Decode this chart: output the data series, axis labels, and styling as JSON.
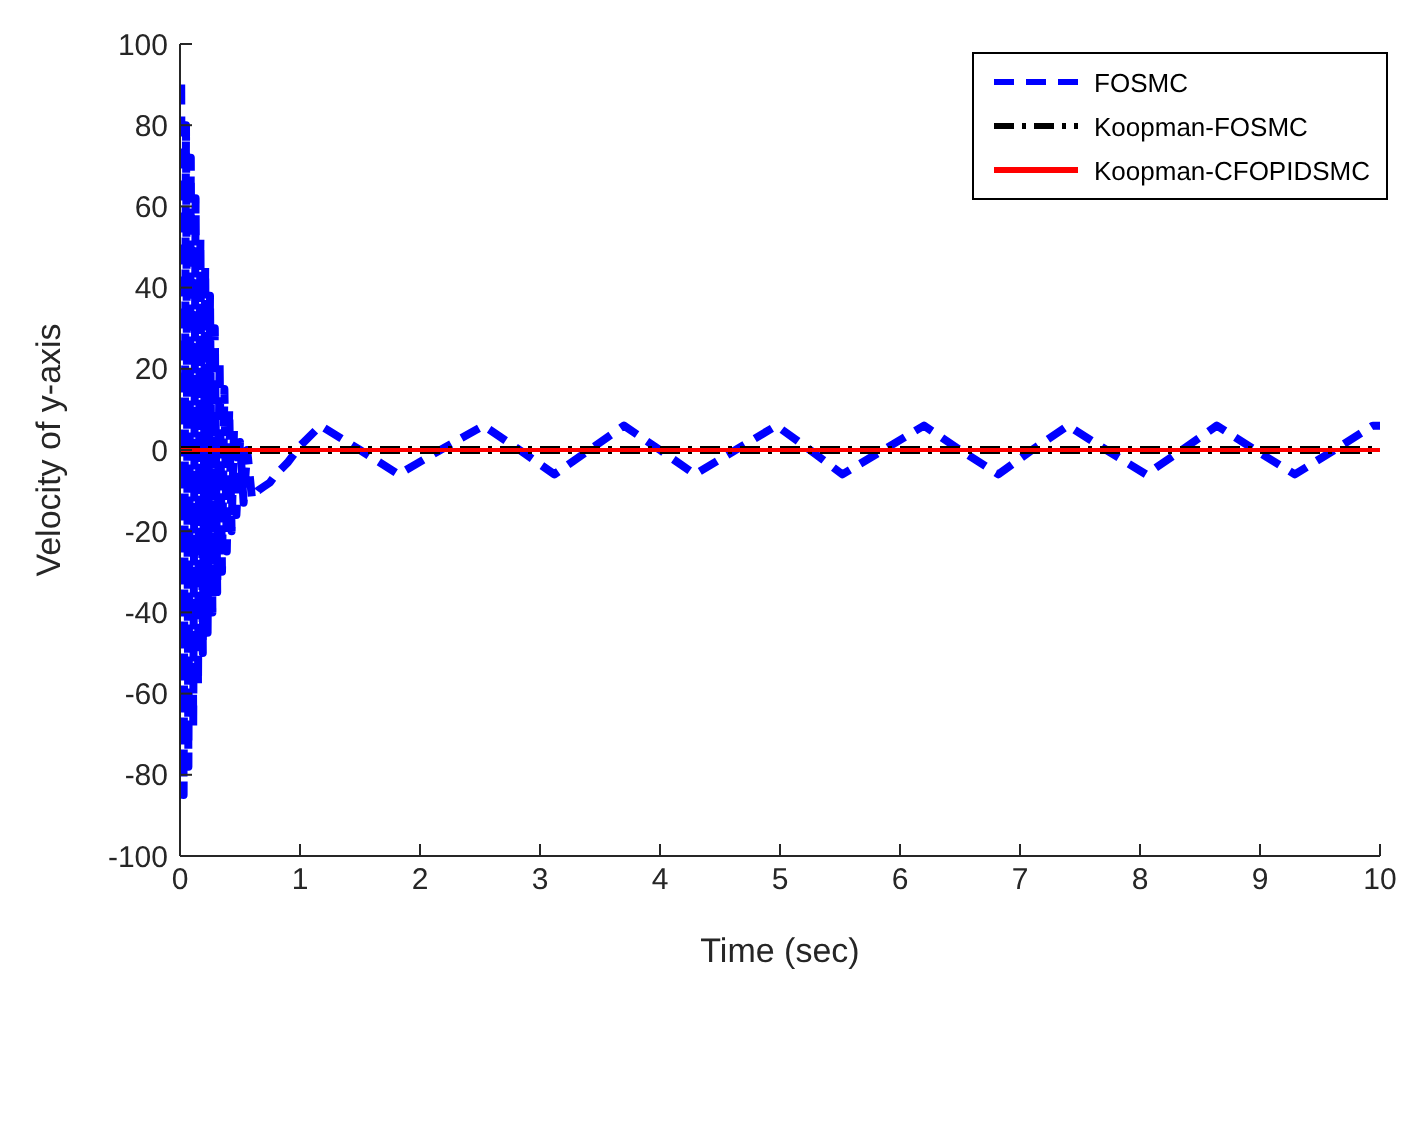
{
  "chart_data": {
    "type": "line",
    "xlabel": "Time (sec)",
    "ylabel": "Velocity of y-axis",
    "xlim": [
      0,
      10
    ],
    "xticks": [
      0,
      1,
      2,
      3,
      4,
      5,
      6,
      7,
      8,
      9,
      10
    ],
    "ylim": [
      -100,
      100
    ],
    "yticks": [
      -100,
      -80,
      -60,
      -40,
      -20,
      0,
      20,
      40,
      60,
      80,
      100
    ],
    "grid": false,
    "legend": "top right",
    "marker": "none",
    "series": [
      {
        "name": "FOSMC",
        "color": "#0000ff",
        "line_style": "dashed",
        "x": [
          0.01,
          0.03,
          0.05,
          0.07,
          0.09,
          0.11,
          0.13,
          0.15,
          0.17,
          0.19,
          0.21,
          0.23,
          0.25,
          0.27,
          0.29,
          0.31,
          0.33,
          0.35,
          0.37,
          0.39,
          0.41,
          0.43,
          0.45,
          0.47,
          0.5,
          0.53,
          0.56,
          0.6,
          0.65,
          0.7,
          0.75,
          0.8,
          0.9,
          1.0,
          1.17,
          1.5,
          1.82,
          2.17,
          2.53,
          2.83,
          3.12,
          3.41,
          3.7,
          4.0,
          4.29,
          4.63,
          4.97,
          5.25,
          5.52,
          5.86,
          6.2,
          6.5,
          6.82,
          7.1,
          7.4,
          7.72,
          8.05,
          8.35,
          8.64,
          8.96,
          9.29,
          9.62,
          9.94,
          10
        ],
        "values": [
          90,
          -85,
          80,
          -78,
          72,
          -68,
          62,
          -58,
          52,
          -50,
          45,
          -45,
          38,
          -40,
          30,
          -35,
          22,
          -30,
          15,
          -25,
          10,
          -20,
          5,
          -16,
          2,
          -13,
          0,
          -12,
          -10,
          -9,
          -8,
          -6,
          -3,
          1,
          6,
          0,
          -6,
          0,
          6,
          0,
          -6,
          0,
          6,
          0,
          -6,
          0,
          6,
          0,
          -6,
          0,
          6,
          0,
          -6,
          0,
          6,
          0,
          -6,
          0,
          6,
          0,
          -6,
          0,
          6,
          6
        ]
      },
      {
        "name": "Koopman-FOSMC",
        "color": "#000000",
        "line_style": "dashdot",
        "x": [
          0,
          10
        ],
        "values": [
          0,
          0
        ]
      },
      {
        "name": "Koopman-CFOPIDSMC",
        "color": "#ff0000",
        "line_style": "solid",
        "x": [
          0,
          10
        ],
        "values": [
          0,
          0
        ]
      }
    ]
  }
}
